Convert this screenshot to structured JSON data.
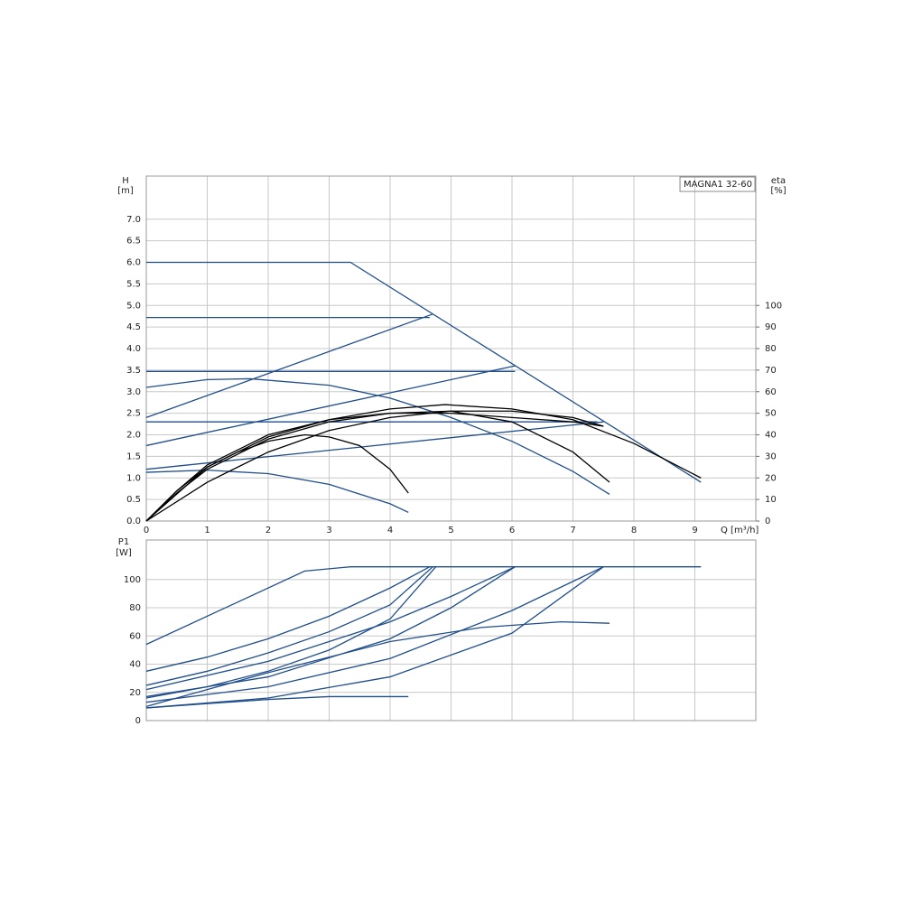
{
  "chart_data": [
    {
      "type": "line",
      "title": "MAGNA1 32-60",
      "y_label": "H",
      "y_unit": "[m]",
      "y2_label": "eta",
      "y2_unit": "[%]",
      "x_label": "Q [m³/h]",
      "xlim": [
        0,
        10
      ],
      "xticks": [
        0,
        1,
        2,
        3,
        4,
        5,
        6,
        7,
        8,
        9
      ],
      "ylim": [
        0,
        8
      ],
      "yticks": [
        {
          "value": 0,
          "label": "0.0"
        },
        {
          "value": 0.5,
          "label": "0.5"
        },
        {
          "value": 1,
          "label": "1.0"
        },
        {
          "value": 1.5,
          "label": "1.5"
        },
        {
          "value": 2,
          "label": "2.0"
        },
        {
          "value": 2.5,
          "label": "2.5"
        },
        {
          "value": 3,
          "label": "3.0"
        },
        {
          "value": 3.5,
          "label": "3.5"
        },
        {
          "value": 4,
          "label": "4.0"
        },
        {
          "value": 4.5,
          "label": "4.5"
        },
        {
          "value": 5,
          "label": "5.0"
        },
        {
          "value": 5.5,
          "label": "5.5"
        },
        {
          "value": 6,
          "label": "6.0"
        },
        {
          "value": 6.5,
          "label": "6.5"
        },
        {
          "value": 7,
          "label": "7.0"
        }
      ],
      "y2lim": [
        0,
        160
      ],
      "y2ticks": [
        0,
        10,
        20,
        30,
        40,
        50,
        60,
        70,
        80,
        90,
        100
      ],
      "grid": true,
      "series": [
        {
          "color": "#1f4e8c",
          "x": [
            0,
            3.35,
            9.1
          ],
          "values": [
            6.0,
            6.0,
            0.9
          ]
        },
        {
          "color": "#1f4e8c",
          "x": [
            0,
            4.65
          ],
          "values": [
            4.72,
            4.72
          ]
        },
        {
          "color": "#1f4e8c",
          "x": [
            0,
            6.05
          ],
          "values": [
            3.47,
            3.47
          ]
        },
        {
          "color": "#1f4e8c",
          "x": [
            0,
            7.4
          ],
          "values": [
            2.3,
            2.3
          ]
        },
        {
          "color": "#1f4e8c",
          "x": [
            0,
            4.7
          ],
          "values": [
            2.4,
            4.8
          ]
        },
        {
          "color": "#1f4e8c",
          "x": [
            0,
            6.05
          ],
          "values": [
            1.75,
            3.6
          ]
        },
        {
          "color": "#1f4e8c",
          "x": [
            0,
            7.5
          ],
          "values": [
            1.2,
            2.3
          ]
        },
        {
          "color": "#1f4e8c",
          "x": [
            0,
            1,
            1.7,
            3,
            4,
            5,
            6,
            7,
            7.6
          ],
          "values": [
            3.1,
            3.28,
            3.3,
            3.15,
            2.85,
            2.4,
            1.85,
            1.15,
            0.62
          ]
        },
        {
          "color": "#1f4e8c",
          "x": [
            0,
            1,
            2,
            3,
            4,
            4.3
          ],
          "values": [
            1.13,
            1.18,
            1.1,
            0.85,
            0.4,
            0.2
          ]
        },
        {
          "color": "#000000",
          "axis": "y2",
          "x": [
            0,
            0.5,
            1,
            2,
            3,
            4,
            4.9,
            6,
            7,
            8,
            9.1
          ],
          "values": [
            0,
            14,
            26,
            40,
            47,
            52,
            54,
            52,
            47,
            36,
            20
          ]
        },
        {
          "color": "#000000",
          "axis": "y2",
          "x": [
            0,
            0.5,
            1,
            1.5,
            2,
            2.6,
            3,
            3.5,
            4,
            4.3
          ],
          "values": [
            0,
            14,
            25,
            32,
            37,
            40,
            39,
            35,
            24,
            13
          ]
        },
        {
          "color": "#000000",
          "axis": "y2",
          "x": [
            0,
            0.5,
            1,
            2,
            3,
            4,
            5,
            6,
            7,
            7.6
          ],
          "values": [
            0,
            13,
            24,
            38,
            46,
            50,
            51,
            46,
            32,
            18
          ]
        },
        {
          "color": "#000000",
          "axis": "y2",
          "x": [
            0,
            1,
            2,
            3,
            4,
            5,
            6,
            7,
            7.5
          ],
          "values": [
            0,
            18,
            32,
            42,
            48,
            51,
            51,
            48,
            44
          ]
        },
        {
          "color": "#000000",
          "axis": "y2",
          "x": [
            0,
            1,
            2,
            3,
            4,
            5,
            6,
            7,
            7.5
          ],
          "values": [
            0,
            25,
            39,
            47,
            50,
            50,
            48,
            46,
            44
          ]
        }
      ]
    },
    {
      "type": "line",
      "y_label": "P1",
      "y_unit": "[W]",
      "xlim": [
        0,
        10
      ],
      "ylim": [
        0,
        128
      ],
      "yticks": [
        0,
        20,
        40,
        60,
        80,
        100
      ],
      "grid": true,
      "series": [
        {
          "color": "#1f4e8c",
          "x": [
            0,
            2.6,
            3.35,
            9.1
          ],
          "values": [
            54,
            106,
            109,
            109
          ]
        },
        {
          "color": "#1f4e8c",
          "x": [
            0,
            1,
            2,
            3,
            4,
            4.65
          ],
          "values": [
            35,
            45,
            58,
            74,
            94,
            109
          ]
        },
        {
          "color": "#1f4e8c",
          "x": [
            0,
            1,
            2,
            3,
            4,
            4.7
          ],
          "values": [
            25,
            35,
            48,
            63,
            82,
            109
          ]
        },
        {
          "color": "#1f4e8c",
          "x": [
            0,
            1,
            2,
            3,
            4,
            4.75
          ],
          "values": [
            16,
            24,
            35,
            50,
            72,
            109
          ]
        },
        {
          "color": "#1f4e8c",
          "x": [
            0,
            2,
            4,
            5,
            6.05
          ],
          "values": [
            22,
            42,
            70,
            88,
            109
          ]
        },
        {
          "color": "#1f4e8c",
          "x": [
            0,
            2,
            4,
            5,
            6.05
          ],
          "values": [
            17,
            31,
            58,
            80,
            109
          ]
        },
        {
          "color": "#1f4e8c",
          "x": [
            0,
            2,
            4,
            6,
            7.5
          ],
          "values": [
            13,
            24,
            44,
            78,
            109
          ]
        },
        {
          "color": "#1f4e8c",
          "x": [
            0,
            2,
            4,
            6,
            7.5
          ],
          "values": [
            9,
            16,
            31,
            62,
            109
          ]
        },
        {
          "color": "#1f4e8c",
          "x": [
            0,
            2,
            4,
            5.5,
            6.8,
            7.6
          ],
          "values": [
            10,
            34,
            56,
            66,
            70,
            69
          ]
        },
        {
          "color": "#1f4e8c",
          "x": [
            0,
            1,
            2,
            3,
            4.3
          ],
          "values": [
            9,
            12,
            15,
            17,
            17
          ]
        }
      ]
    }
  ]
}
